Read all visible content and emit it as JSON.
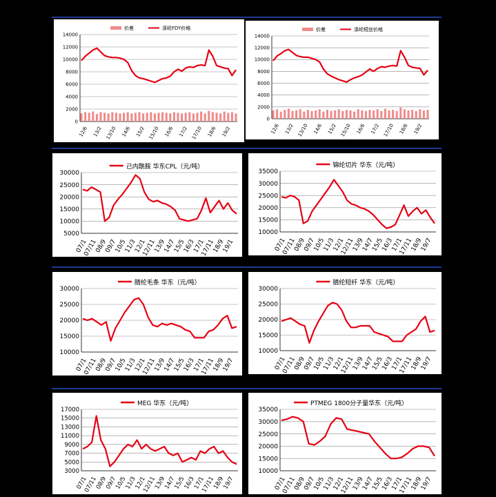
{
  "colors": {
    "line": "#e60012",
    "bar": "#f08a8a",
    "grid": "#8c8c8c",
    "separator": "#1f3a93"
  },
  "chart_data": [
    {
      "type": "line",
      "legend": "top",
      "legend_items": [
        "价差",
        "涤纶FDY价格"
      ],
      "yticks": [
        0,
        2000,
        4000,
        6000,
        8000,
        10000,
        12000,
        14000
      ],
      "ylim": [
        0,
        14000
      ],
      "xticks": [
        "12/6",
        "13/2",
        "13/10",
        "14/6",
        "15/2",
        "15/10",
        "16/6",
        "17/2",
        "17/10",
        "18/6",
        "19/2"
      ],
      "series": [
        {
          "name": "涤纶FDY价格",
          "kind": "line",
          "values": [
            9800,
            10500,
            11000,
            11500,
            11800,
            11200,
            10600,
            10400,
            10300,
            10300,
            10200,
            10000,
            9500,
            8200,
            7400,
            7000,
            6900,
            6700,
            6500,
            6300,
            6600,
            6900,
            7000,
            7300,
            8000,
            8400,
            8100,
            8600,
            8800,
            8700,
            9000,
            9100,
            9000,
            11500,
            10500,
            9000,
            8800,
            8600,
            8500,
            7400,
            8300
          ]
        },
        {
          "name": "价差",
          "kind": "bar",
          "values": [
            1300,
            1500,
            1400,
            1600,
            1200,
            1500,
            1400,
            1300,
            1500,
            1400,
            1300,
            1400,
            1500,
            1300,
            1400,
            1500,
            1300,
            1400,
            1500,
            1300,
            1400,
            1500,
            1400,
            1300,
            1500,
            1400,
            1300,
            1400,
            1500,
            1300,
            1400,
            1600,
            1300,
            1700,
            1500,
            1400,
            1300,
            1600,
            1400,
            1500,
            1300
          ]
        }
      ]
    },
    {
      "type": "line",
      "legend": "top",
      "legend_items": [
        "价差",
        "涤纶短丝价格"
      ],
      "yticks": [
        0,
        2000,
        4000,
        6000,
        8000,
        10000,
        12000,
        14000
      ],
      "ylim": [
        0,
        14000
      ],
      "xticks": [
        "12/6",
        "13/2",
        "13/10",
        "14/6",
        "15/2",
        "15/10",
        "16/6",
        "17/2",
        "17/10",
        "18/6",
        "19/2"
      ],
      "series": [
        {
          "name": "涤纶短丝价格",
          "kind": "line",
          "values": [
            9800,
            10600,
            11000,
            11500,
            11700,
            11200,
            10700,
            10500,
            10400,
            10400,
            10200,
            10000,
            9600,
            8400,
            7600,
            7200,
            6900,
            6600,
            6400,
            6200,
            6600,
            6900,
            7100,
            7400,
            7900,
            8400,
            8000,
            8500,
            8800,
            8700,
            8900,
            9000,
            8900,
            11500,
            10400,
            9000,
            8700,
            8600,
            8500,
            7400,
            8200
          ]
        },
        {
          "name": "价差",
          "kind": "bar",
          "values": [
            1400,
            1600,
            1200,
            1500,
            1700,
            1300,
            1400,
            1600,
            1200,
            1500,
            1300,
            1400,
            1600,
            1200,
            1500,
            1300,
            1400,
            1600,
            1300,
            1500,
            1400,
            1200,
            1600,
            1400,
            1300,
            1500,
            1400,
            1600,
            1300,
            1700,
            1400,
            1500,
            1300,
            1900,
            1600,
            1400,
            1500,
            1300,
            1600,
            1400,
            1500
          ]
        }
      ]
    },
    {
      "type": "line",
      "legend": "top",
      "legend_items": [
        "己内酰胺 华东CPL（元/吨）"
      ],
      "yticks": [
        5000,
        10000,
        15000,
        20000,
        25000,
        30000
      ],
      "ylim": [
        5000,
        30000
      ],
      "xticks": [
        "07/1",
        "07/11",
        "08/9",
        "09/7",
        "10/5",
        "11/3",
        "12/1",
        "12/11",
        "13/9",
        "14/7",
        "15/5",
        "16/3",
        "17/1",
        "17/11",
        "18/9",
        "19/1"
      ],
      "series": [
        {
          "name": "己内酰胺 华东CPL",
          "kind": "line",
          "values": [
            23000,
            22500,
            24000,
            23000,
            22000,
            10000,
            11500,
            16500,
            19000,
            21000,
            23500,
            26000,
            29000,
            27500,
            22000,
            19000,
            18000,
            18500,
            17500,
            17000,
            16000,
            14500,
            11000,
            10500,
            10000,
            10500,
            11000,
            14500,
            19500,
            13500,
            16000,
            18500,
            15000,
            17500,
            14500,
            13000
          ]
        }
      ]
    },
    {
      "type": "line",
      "legend": "top",
      "legend_items": [
        "锦纶切片 华东（元/吨）"
      ],
      "yticks": [
        10000,
        15000,
        20000,
        25000,
        30000,
        35000
      ],
      "ylim": [
        10000,
        35000
      ],
      "xticks": [
        "07/1",
        "07/11",
        "08/9",
        "09/7",
        "10/5",
        "11/3",
        "12/1",
        "12/11",
        "13/9",
        "14/7",
        "15/5",
        "16/3",
        "17/1",
        "17/11",
        "18/9",
        "19/7"
      ],
      "series": [
        {
          "name": "锦纶切片 华东",
          "kind": "line",
          "values": [
            24500,
            24000,
            25000,
            24500,
            23000,
            13500,
            14500,
            18500,
            21000,
            23500,
            26000,
            28500,
            31500,
            29000,
            26500,
            23000,
            21500,
            21000,
            20000,
            19500,
            18500,
            17000,
            15000,
            13000,
            11500,
            12000,
            13000,
            17000,
            21000,
            16500,
            18500,
            20000,
            17500,
            19000,
            16000,
            13500
          ]
        }
      ]
    },
    {
      "type": "line",
      "legend": "top",
      "legend_items": [
        "腈纶毛条 华东（元/吨）"
      ],
      "yticks": [
        10000,
        15000,
        20000,
        25000,
        30000
      ],
      "ylim": [
        10000,
        30000
      ],
      "xticks": [
        "07/1",
        "07/11",
        "08/9",
        "09/7",
        "10/5",
        "11/3",
        "12/1",
        "12/11",
        "13/9",
        "14/7",
        "15/5",
        "16/3",
        "17/1",
        "17/11",
        "18/9",
        "19/7"
      ],
      "series": [
        {
          "name": "腈纶毛条 华东",
          "kind": "line",
          "values": [
            20500,
            20000,
            20500,
            19500,
            18500,
            19500,
            13500,
            17500,
            20000,
            22500,
            24500,
            26500,
            27000,
            25000,
            21000,
            18500,
            18000,
            19000,
            18500,
            19000,
            18500,
            18000,
            17000,
            16500,
            14500,
            14500,
            14500,
            16500,
            17000,
            18500,
            20500,
            21500,
            17500,
            18000
          ]
        }
      ]
    },
    {
      "type": "line",
      "legend": "top",
      "legend_items": [
        "腈纶短纤 华东（元/吨）"
      ],
      "yticks": [
        10000,
        15000,
        20000,
        25000,
        30000
      ],
      "ylim": [
        10000,
        30000
      ],
      "xticks": [
        "07/1",
        "07/11",
        "08/9",
        "09/7",
        "10/5",
        "11/3",
        "12/1",
        "12/11",
        "13/9",
        "14/7",
        "15/5",
        "16/3",
        "17/1",
        "17/11",
        "18/9",
        "19/7"
      ],
      "series": [
        {
          "name": "腈纶短纤 华东",
          "kind": "line",
          "values": [
            19500,
            20000,
            20500,
            19500,
            18500,
            18000,
            12500,
            16500,
            19500,
            22000,
            24500,
            25500,
            25000,
            23000,
            19500,
            17500,
            17500,
            18000,
            18000,
            18000,
            16000,
            15500,
            15000,
            14500,
            13000,
            13000,
            13000,
            15000,
            16000,
            17000,
            19500,
            21000,
            16000,
            16500
          ]
        }
      ]
    },
    {
      "type": "line",
      "legend": "top",
      "legend_items": [
        "MEG 华东（元/吨）"
      ],
      "yticks": [
        3000,
        5000,
        7000,
        9000,
        11000,
        13000,
        15000,
        17000
      ],
      "ylim": [
        3000,
        17000
      ],
      "xticks": [
        "07/1",
        "07/11",
        "08/9",
        "09/7",
        "10/5",
        "11/3",
        "12/1",
        "12/11",
        "13/9",
        "14/7",
        "15/5",
        "16/3",
        "17/1",
        "17/11",
        "18/9",
        "19/7"
      ],
      "series": [
        {
          "name": "MEG 华东",
          "kind": "line",
          "values": [
            8000,
            8500,
            9500,
            15500,
            10000,
            8000,
            4000,
            5000,
            6500,
            8000,
            9000,
            8500,
            10000,
            8000,
            9000,
            8000,
            7500,
            8000,
            8500,
            7000,
            6500,
            7000,
            5000,
            5500,
            6000,
            5500,
            7500,
            7000,
            8000,
            8500,
            7000,
            7500,
            6000,
            5000,
            4500
          ]
        }
      ]
    },
    {
      "type": "line",
      "legend": "top",
      "legend_items": [
        "PTMEG 1800分子量华东（元/吨）"
      ],
      "yticks": [
        10000,
        15000,
        20000,
        25000,
        30000,
        35000
      ],
      "ylim": [
        10000,
        35000
      ],
      "xticks": [
        "07/1",
        "07/11",
        "08/9",
        "09/7",
        "10/5",
        "11/3",
        "12/1",
        "12/11",
        "13/9",
        "14/7",
        "15/5",
        "16/3",
        "17/1",
        "17/11",
        "18/9",
        "19/7"
      ],
      "series": [
        {
          "name": "PTMEG 1800分子量华东",
          "kind": "line",
          "values": [
            30500,
            31000,
            32000,
            31500,
            30000,
            21000,
            20500,
            22000,
            24000,
            29000,
            31500,
            31000,
            27000,
            26500,
            26000,
            25500,
            25000,
            22000,
            19500,
            17000,
            15000,
            15000,
            15500,
            17000,
            19000,
            20000,
            20000,
            19500,
            16000
          ]
        }
      ]
    }
  ]
}
